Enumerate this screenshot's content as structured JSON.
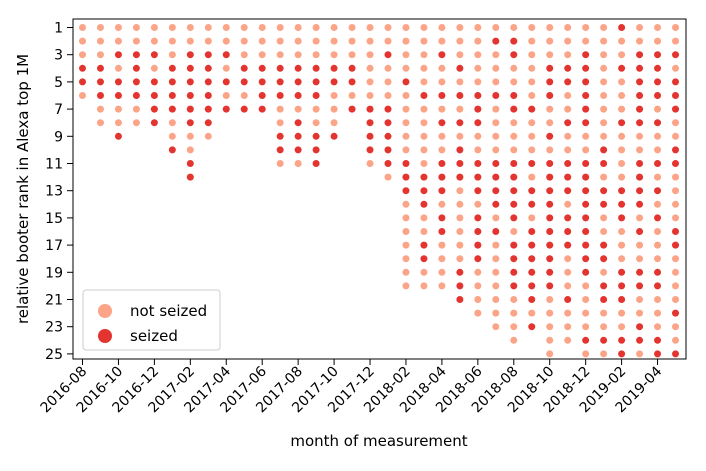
{
  "chart_data": {
    "type": "scatter",
    "title": "",
    "xlabel": "month of measurement",
    "ylabel": "relative booter rank in Alexa top 1M",
    "y_axis_inverted": true,
    "ylim": [
      1,
      25
    ],
    "x_tick_labels": [
      "2016-08",
      "2016-10",
      "2016-12",
      "2017-02",
      "2017-04",
      "2017-06",
      "2017-08",
      "2017-10",
      "2017-12",
      "2018-02",
      "2018-04",
      "2018-06",
      "2018-08",
      "2018-10",
      "2018-12",
      "2019-02",
      "2019-04"
    ],
    "y_tick_labels": [
      "1",
      "3",
      "5",
      "7",
      "9",
      "11",
      "13",
      "15",
      "17",
      "19",
      "21",
      "23",
      "25"
    ],
    "legend_position": "lower-left",
    "grid": false,
    "categories": [
      "2016-08",
      "2016-09",
      "2016-10",
      "2016-11",
      "2016-12",
      "2017-01",
      "2017-02",
      "2017-03",
      "2017-04",
      "2017-05",
      "2017-06",
      "2017-07",
      "2017-08",
      "2017-09",
      "2017-10",
      "2017-11",
      "2017-12",
      "2018-01",
      "2018-02",
      "2018-03",
      "2018-04",
      "2018-05",
      "2018-06",
      "2018-07",
      "2018-08",
      "2018-09",
      "2018-10",
      "2018-11",
      "2018-12",
      "2019-01",
      "2019-02",
      "2019-03",
      "2019-04",
      "2019-05"
    ],
    "series": [
      {
        "name": "not seized",
        "color": "#fca487"
      },
      {
        "name": "seized",
        "color": "#e3342f"
      }
    ],
    "counts": [
      6,
      8,
      9,
      8,
      8,
      10,
      12,
      9,
      7,
      7,
      7,
      11,
      11,
      11,
      9,
      7,
      11,
      12,
      20,
      20,
      20,
      21,
      22,
      23,
      24,
      23,
      25,
      24,
      25,
      25,
      25,
      25,
      25,
      25
    ],
    "seized_ranks": [
      [
        4,
        5
      ],
      [
        4,
        5,
        6
      ],
      [
        3,
        5,
        6,
        9
      ],
      [
        3,
        4,
        5,
        6
      ],
      [
        3,
        5,
        6,
        7,
        8
      ],
      [
        4,
        5,
        6,
        7,
        10
      ],
      [
        3,
        4,
        5,
        6,
        7,
        8,
        11,
        12
      ],
      [
        3,
        4,
        5,
        6,
        7,
        8
      ],
      [
        3,
        5,
        7
      ],
      [
        4,
        5,
        7
      ],
      [
        4,
        5,
        6,
        7
      ],
      [
        4,
        5,
        6,
        9,
        10
      ],
      [
        4,
        5,
        6,
        8,
        9,
        10
      ],
      [
        4,
        5,
        6,
        9,
        10,
        11
      ],
      [
        4,
        5,
        9
      ],
      [
        4,
        5,
        7
      ],
      [
        7,
        8,
        9,
        10
      ],
      [
        3,
        7,
        8,
        9,
        10,
        11
      ],
      [
        5,
        11,
        12,
        13
      ],
      [
        6,
        12,
        13,
        14,
        17,
        18
      ],
      [
        3,
        6,
        8,
        11,
        12,
        13,
        15,
        16,
        21
      ],
      [
        4,
        6,
        8,
        10,
        11,
        12,
        19,
        20,
        21
      ],
      [
        6,
        7,
        8,
        11,
        12,
        13,
        15,
        16,
        17,
        18,
        23
      ],
      [
        2,
        6,
        11,
        12,
        13,
        14,
        16,
        24
      ],
      [
        2,
        3,
        6,
        7,
        11,
        12,
        13,
        14,
        15,
        17,
        18,
        19,
        20
      ],
      [
        7,
        11,
        13,
        14,
        16,
        17,
        18,
        19,
        20,
        21,
        23,
        24
      ],
      [
        4,
        5,
        6,
        9,
        11,
        12,
        13,
        14,
        15,
        16,
        17,
        18,
        19,
        20
      ],
      [
        4,
        5,
        8,
        11,
        12,
        13,
        15,
        16,
        17,
        21
      ],
      [
        3,
        4,
        5,
        6,
        7,
        8,
        11,
        12,
        13,
        14,
        15,
        16,
        17,
        18,
        19,
        24
      ],
      [
        10,
        11,
        13,
        14,
        17,
        18,
        20,
        21,
        24
      ],
      [
        1,
        4,
        8,
        13,
        14,
        15,
        19,
        20,
        21,
        24,
        25
      ],
      [
        3,
        4,
        5,
        6,
        7,
        8,
        11,
        12,
        13,
        14,
        16,
        19,
        20,
        23,
        24
      ],
      [
        3,
        4,
        5,
        6,
        8,
        11,
        13,
        15,
        19,
        20,
        24,
        25
      ],
      [
        3,
        5,
        6,
        7,
        10,
        11,
        16,
        17,
        22,
        25
      ]
    ]
  }
}
